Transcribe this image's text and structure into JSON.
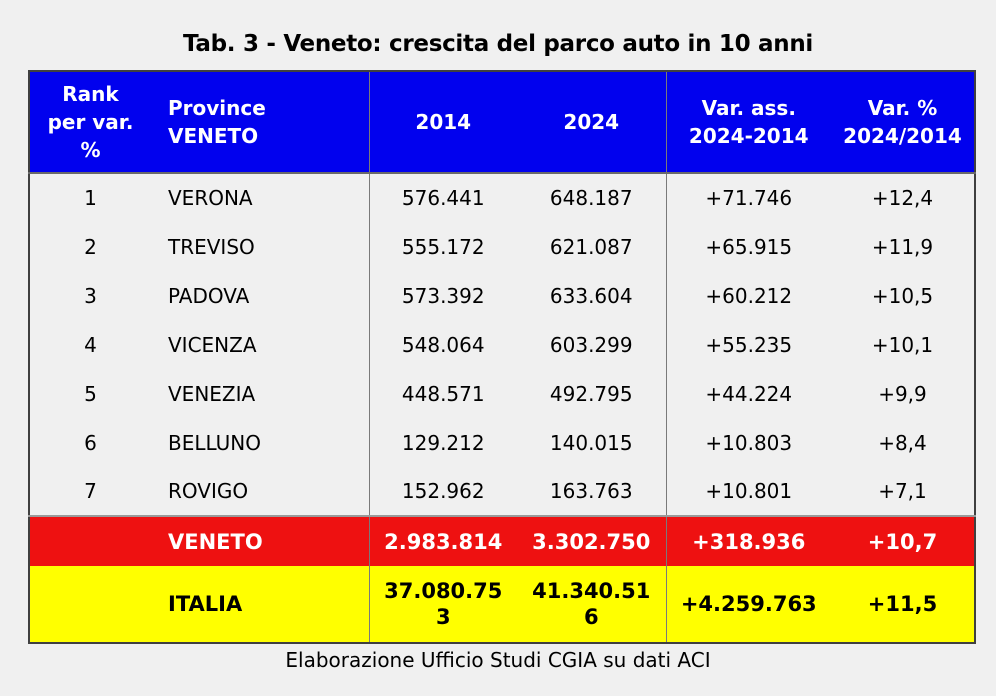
{
  "title": "Tab. 3 - Veneto: crescita del parco auto in 10 anni",
  "footer": "Elaborazione Ufficio Studi CGIA su dati ACI",
  "colors": {
    "header_bg": "#0101EE",
    "header_text": "#FFFFFF",
    "veneto_row_bg": "#EE1111",
    "veneto_row_text": "#FFFFFF",
    "italia_row_bg": "#FFFF00",
    "italia_row_text": "#000000",
    "page_bg": "#F0F0F0"
  },
  "table": {
    "header": {
      "rank": [
        "Rank",
        "per var.",
        "%"
      ],
      "province": [
        "Province",
        "VENETO"
      ],
      "y2014": "2014",
      "y2024": "2024",
      "var_ass": [
        "Var. ass.",
        "2024-2014"
      ],
      "var_pct": [
        "Var. %",
        "2024/2014"
      ]
    },
    "rows": [
      {
        "rank": "1",
        "province": "VERONA",
        "y2014": "576.441",
        "y2024": "648.187",
        "var_ass": "+71.746",
        "var_pct": "+12,4"
      },
      {
        "rank": "2",
        "province": "TREVISO",
        "y2014": "555.172",
        "y2024": "621.087",
        "var_ass": "+65.915",
        "var_pct": "+11,9"
      },
      {
        "rank": "3",
        "province": "PADOVA",
        "y2014": "573.392",
        "y2024": "633.604",
        "var_ass": "+60.212",
        "var_pct": "+10,5"
      },
      {
        "rank": "4",
        "province": "VICENZA",
        "y2014": "548.064",
        "y2024": "603.299",
        "var_ass": "+55.235",
        "var_pct": "+10,1"
      },
      {
        "rank": "5",
        "province": "VENEZIA",
        "y2014": "448.571",
        "y2024": "492.795",
        "var_ass": "+44.224",
        "var_pct": "+9,9"
      },
      {
        "rank": "6",
        "province": "BELLUNO",
        "y2014": "129.212",
        "y2024": "140.015",
        "var_ass": "+10.803",
        "var_pct": "+8,4"
      },
      {
        "rank": "7",
        "province": "ROVIGO",
        "y2014": "152.962",
        "y2024": "163.763",
        "var_ass": "+10.801",
        "var_pct": "+7,1"
      }
    ],
    "totals": {
      "veneto": {
        "label": "VENETO",
        "y2014": "2.983.814",
        "y2024": "3.302.750",
        "var_ass": "+318.936",
        "var_pct": "+10,7"
      },
      "italia": {
        "label": "ITALIA",
        "y2014": "37.080.753",
        "y2014_lines": [
          "37.080.75",
          "3"
        ],
        "y2024": "41.340.516",
        "y2024_lines": [
          "41.340.51",
          "6"
        ],
        "var_ass": "+4.259.763",
        "var_pct": "+11,5"
      }
    }
  }
}
